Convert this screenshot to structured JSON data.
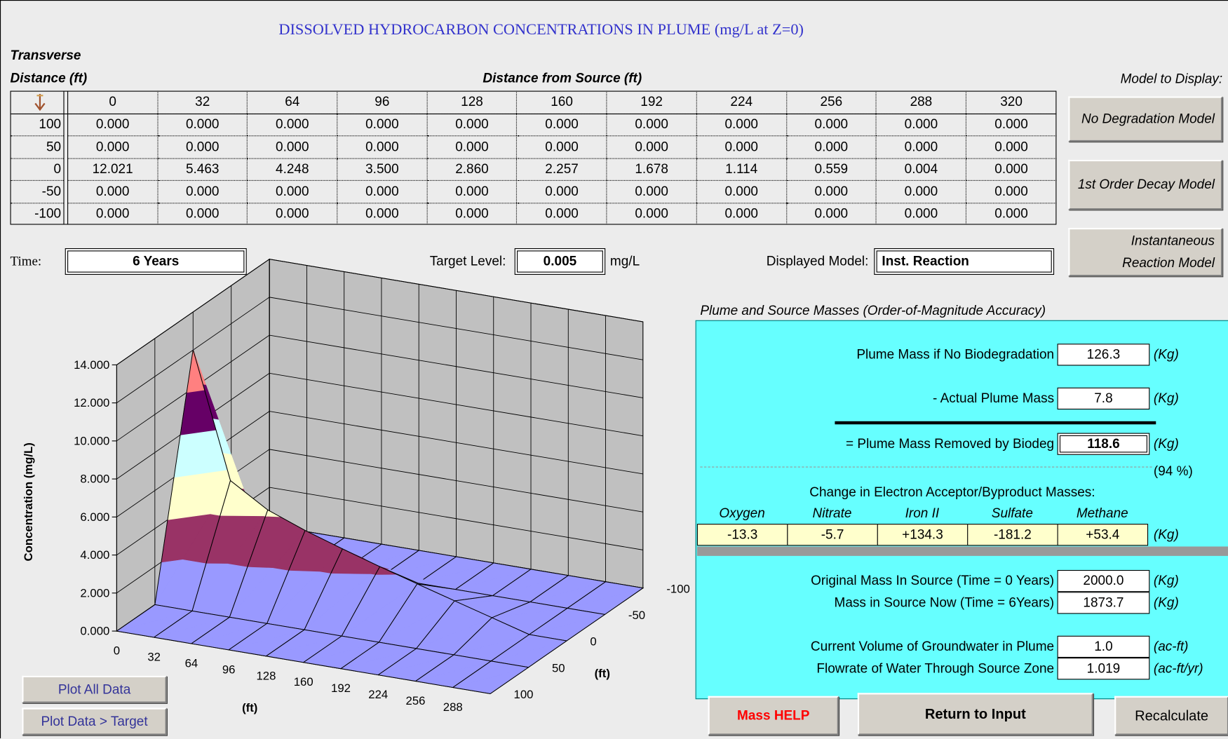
{
  "title": "DISSOLVED HYDROCARBON CONCENTRATIONS IN PLUME (mg/L at Z=0)",
  "table": {
    "row_axis_label": [
      "Transverse",
      "Distance (ft)"
    ],
    "column_axis_label": "Distance from Source (ft)",
    "columns": [
      0,
      32,
      64,
      96,
      128,
      160,
      192,
      224,
      256,
      288,
      320
    ],
    "rows": [
      {
        "label": 100,
        "values": [
          "0.000",
          "0.000",
          "0.000",
          "0.000",
          "0.000",
          "0.000",
          "0.000",
          "0.000",
          "0.000",
          "0.000",
          "0.000"
        ]
      },
      {
        "label": 50,
        "values": [
          "0.000",
          "0.000",
          "0.000",
          "0.000",
          "0.000",
          "0.000",
          "0.000",
          "0.000",
          "0.000",
          "0.000",
          "0.000"
        ]
      },
      {
        "label": 0,
        "values": [
          "12.021",
          "5.463",
          "4.248",
          "3.500",
          "2.860",
          "2.257",
          "1.678",
          "1.114",
          "0.559",
          "0.004",
          "0.000"
        ]
      },
      {
        "label": -50,
        "values": [
          "0.000",
          "0.000",
          "0.000",
          "0.000",
          "0.000",
          "0.000",
          "0.000",
          "0.000",
          "0.000",
          "0.000",
          "0.000"
        ]
      },
      {
        "label": -100,
        "values": [
          "0.000",
          "0.000",
          "0.000",
          "0.000",
          "0.000",
          "0.000",
          "0.000",
          "0.000",
          "0.000",
          "0.000",
          "0.000"
        ]
      }
    ]
  },
  "model_selector": {
    "label": "Model to Display:",
    "buttons": [
      "No Degradation Model",
      "1st Order Decay Model",
      "Instantaneous Reaction Model"
    ]
  },
  "time": {
    "label": "Time:",
    "value": "6 Years"
  },
  "target": {
    "label": "Target Level:",
    "value": "0.005",
    "unit": "mg/L"
  },
  "displayed_model": {
    "label": "Displayed Model:",
    "value": "Inst. Reaction"
  },
  "plot": {
    "y_axis_label": "Concentration (mg/L)",
    "x_axis_label": "(ft)",
    "depth_axis_label": "(ft)",
    "ylim": [
      0,
      14
    ],
    "yticks": [
      {
        "value": 0,
        "label": "0.000"
      },
      {
        "value": 2,
        "label": "2.000"
      },
      {
        "value": 4,
        "label": "4.000"
      },
      {
        "value": 6,
        "label": "6.000"
      },
      {
        "value": 8,
        "label": "8.000"
      },
      {
        "value": 10,
        "label": "10.000"
      },
      {
        "value": 12,
        "label": "12.000"
      },
      {
        "value": 14,
        "label": "14.000"
      }
    ],
    "xlim": [
      0,
      320
    ],
    "xticks": [
      0,
      32,
      64,
      96,
      128,
      160,
      192,
      224,
      256,
      288
    ],
    "depth_lim": [
      100,
      -100
    ],
    "depth_ticks": [
      100,
      50,
      0,
      -50,
      -100
    ],
    "band_colors": [
      "#9999ff",
      "#993366",
      "#ffffcc",
      "#ccffff",
      "#660066",
      "#ff8080"
    ],
    "buttons": [
      "Plot All Data",
      "Plot Data > Target"
    ]
  },
  "masses": {
    "title": "Plume and Source Masses (Order-of-Magnitude Accuracy)",
    "plume": [
      {
        "label": "Plume Mass if No Biodegradation",
        "value": "126.3",
        "unit": "(Kg)"
      },
      {
        "label": "- Actual Plume Mass",
        "value": "7.8",
        "unit": "(Kg)"
      },
      {
        "label": "= Plume Mass Removed by Biodeg",
        "value": "118.6",
        "unit": "(Kg)"
      }
    ],
    "percent": "(94 %)",
    "acceptors": {
      "title": "Change in Electron Acceptor/Byproduct Masses:",
      "names": [
        "Oxygen",
        "Nitrate",
        "Iron II",
        "Sulfate",
        "Methane"
      ],
      "values": [
        "-13.3",
        "-5.7",
        "+134.3",
        "-181.2",
        "+53.4"
      ],
      "unit": "(Kg)"
    },
    "source": [
      {
        "label": "Original Mass In Source (Time = 0 Years)",
        "value": "2000.0",
        "unit": "(Kg)"
      },
      {
        "label": "Mass in Source Now (Time = 6Years)",
        "value": "1873.7",
        "unit": "(Kg)"
      }
    ],
    "groundwater": [
      {
        "label": "Current Volume of Groundwater in Plume",
        "value": "1.0",
        "unit": "(ac-ft)"
      },
      {
        "label": "Flowrate of Water Through Source Zone",
        "value": "1.019",
        "unit": "(ac-ft/yr)"
      }
    ]
  },
  "buttons": [
    "Mass HELP",
    "Return to Input",
    "Recalculate"
  ]
}
